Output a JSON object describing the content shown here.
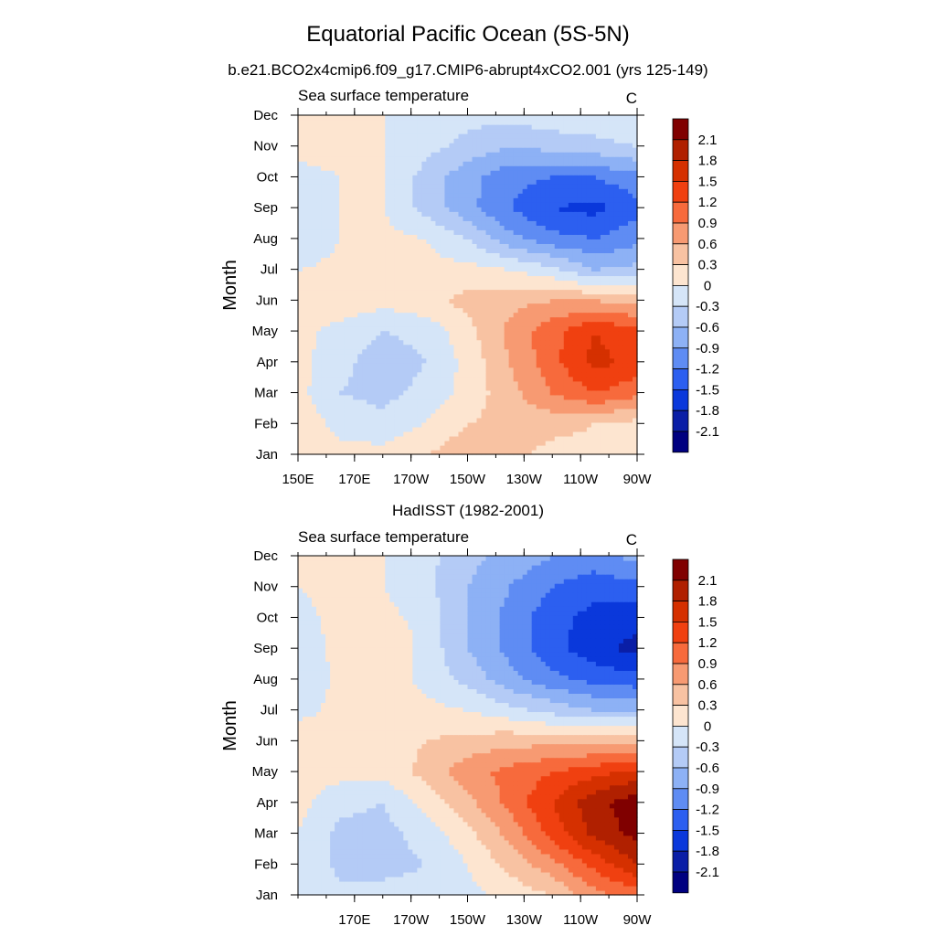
{
  "figure": {
    "title": "Equatorial Pacific Ocean (5S-5N)",
    "subtitle": "b.e21.BCO2x4cmip6.f09_g17.CMIP6-abrupt4xCO2.001 (yrs 125-149)"
  },
  "colorbar": {
    "levels": [
      "2.1",
      "1.8",
      "1.5",
      "1.2",
      "0.9",
      "0.6",
      "0.3",
      "0",
      "-0.3",
      "-0.6",
      "-0.9",
      "-1.2",
      "-1.5",
      "-1.8",
      "-2.1"
    ],
    "colors": [
      "#800000",
      "#b02000",
      "#d53000",
      "#f04010",
      "#f76a3c",
      "#f79a72",
      "#f8c2a2",
      "#fde5d0",
      "#d5e5f8",
      "#b4cbf6",
      "#8db1f5",
      "#5f8cf3",
      "#2c5ff0",
      "#0a38db",
      "#0a1ea6",
      "#000080"
    ]
  },
  "chart_data": [
    {
      "type": "heatmap",
      "title": "",
      "left_label": "Sea surface temperature",
      "right_label": "C",
      "ylabel": "Month",
      "xlabel": "",
      "x_ticks": [
        "150E",
        "170E",
        "170W",
        "150W",
        "130W",
        "110W",
        "90W"
      ],
      "y_ticks": [
        "Jan",
        "Feb",
        "Mar",
        "Apr",
        "May",
        "Jun",
        "Jul",
        "Aug",
        "Sep",
        "Oct",
        "Nov",
        "Dec"
      ],
      "x_lon_east": [
        150,
        165,
        180,
        195,
        210,
        225,
        240,
        255,
        270
      ],
      "values_approx": [
        [
          0.2,
          0.1,
          0.1,
          0.3,
          0.5,
          0.4,
          0.2,
          0.2,
          0.3
        ],
        [
          0.2,
          -0.1,
          -0.2,
          0.0,
          0.3,
          0.4,
          0.4,
          0.3,
          0.2
        ],
        [
          0.1,
          -0.3,
          -0.4,
          -0.2,
          0.1,
          0.5,
          0.9,
          1.2,
          1.0
        ],
        [
          0.1,
          -0.2,
          -0.5,
          -0.3,
          0.1,
          0.6,
          1.1,
          1.6,
          1.4
        ],
        [
          0.1,
          -0.1,
          -0.3,
          -0.2,
          0.2,
          0.7,
          1.1,
          1.5,
          1.3
        ],
        [
          0.1,
          0.2,
          0.1,
          0.2,
          0.4,
          0.5,
          0.6,
          0.6,
          0.5
        ],
        [
          0.0,
          0.1,
          0.1,
          0.1,
          0.1,
          0.0,
          -0.2,
          -0.6,
          -0.5
        ],
        [
          -0.3,
          0.0,
          0.1,
          0.0,
          -0.3,
          -0.8,
          -1.1,
          -1.2,
          -1.0
        ],
        [
          -0.3,
          0.0,
          0.0,
          -0.4,
          -0.8,
          -1.2,
          -1.5,
          -1.6,
          -1.3
        ],
        [
          -0.1,
          0.0,
          0.0,
          -0.4,
          -0.8,
          -1.1,
          -1.2,
          -1.2,
          -1.0
        ],
        [
          0.1,
          0.1,
          0.0,
          -0.2,
          -0.4,
          -0.6,
          -0.5,
          -0.4,
          -0.3
        ],
        [
          0.3,
          0.1,
          0.0,
          -0.1,
          -0.2,
          -0.2,
          -0.1,
          -0.1,
          0.0
        ]
      ]
    },
    {
      "type": "heatmap",
      "title": "HadISST (1982-2001)",
      "left_label": "Sea surface temperature",
      "right_label": "C",
      "ylabel": "Month",
      "xlabel": "",
      "x_ticks": [
        "170E",
        "170W",
        "150W",
        "130W",
        "110W",
        "90W"
      ],
      "y_ticks": [
        "Jan",
        "Feb",
        "Mar",
        "Apr",
        "May",
        "Jun",
        "Jul",
        "Aug",
        "Sep",
        "Oct",
        "Nov",
        "Dec"
      ],
      "x_lon_east": [
        150,
        165,
        180,
        195,
        210,
        225,
        240,
        255,
        270
      ],
      "values_approx": [
        [
          0.0,
          -0.2,
          -0.2,
          -0.2,
          -0.1,
          0.1,
          0.3,
          0.8,
          1.0
        ],
        [
          0.0,
          -0.4,
          -0.4,
          -0.3,
          0.0,
          0.4,
          0.8,
          1.3,
          1.8
        ],
        [
          0.0,
          -0.4,
          -0.4,
          -0.2,
          0.2,
          0.7,
          1.3,
          1.9,
          2.2
        ],
        [
          0.1,
          -0.2,
          -0.3,
          0.1,
          0.5,
          1.0,
          1.5,
          2.0,
          2.3
        ],
        [
          0.1,
          0.1,
          0.1,
          0.4,
          0.8,
          1.0,
          1.2,
          1.4,
          1.6
        ],
        [
          0.2,
          0.1,
          0.1,
          0.3,
          0.4,
          0.5,
          0.5,
          0.5,
          0.5
        ],
        [
          -0.1,
          0.1,
          0.2,
          0.1,
          0.0,
          -0.2,
          -0.4,
          -0.6,
          -0.6
        ],
        [
          -0.3,
          0.1,
          0.2,
          -0.1,
          -0.4,
          -0.8,
          -1.1,
          -1.3,
          -1.4
        ],
        [
          -0.2,
          0.1,
          0.3,
          -0.1,
          -0.6,
          -1.0,
          -1.4,
          -1.7,
          -1.9
        ],
        [
          -0.1,
          0.1,
          0.1,
          -0.1,
          -0.6,
          -1.0,
          -1.4,
          -1.6,
          -1.7
        ],
        [
          0.0,
          0.1,
          0.0,
          -0.2,
          -0.6,
          -0.9,
          -1.2,
          -1.4,
          -1.3
        ],
        [
          0.1,
          0.1,
          0.0,
          -0.2,
          -0.5,
          -0.7,
          -0.9,
          -1.0,
          -0.8
        ]
      ]
    }
  ]
}
